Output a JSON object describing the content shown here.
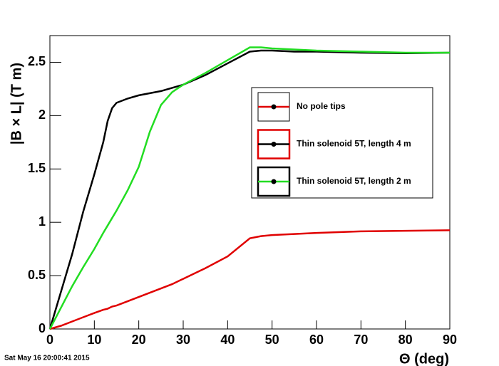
{
  "chart_data": {
    "type": "line",
    "x_label": "Θ (deg)",
    "y_label": "|B × L| (T m)",
    "footer": "Sat May 16 20:00:41 2015",
    "x": [
      0,
      2.5,
      5,
      7.5,
      10,
      12,
      13,
      14,
      15,
      17.5,
      20,
      22.5,
      25,
      27.5,
      30,
      35,
      40,
      45,
      47.5,
      50,
      55,
      60,
      70,
      80,
      90
    ],
    "series": [
      {
        "name": "No pole tips",
        "color": "#e00000",
        "values": [
          0,
          0.03,
          0.07,
          0.11,
          0.15,
          0.18,
          0.19,
          0.21,
          0.22,
          0.26,
          0.3,
          0.34,
          0.38,
          0.42,
          0.47,
          0.57,
          0.68,
          0.85,
          0.87,
          0.88,
          0.89,
          0.9,
          0.915,
          0.92,
          0.925
        ]
      },
      {
        "name": "Thin solenoid 5T, length 4 m",
        "color": "#000000",
        "values": [
          0,
          0.35,
          0.7,
          1.1,
          1.45,
          1.75,
          1.95,
          2.07,
          2.12,
          2.16,
          2.19,
          2.21,
          2.23,
          2.26,
          2.29,
          2.38,
          2.49,
          2.6,
          2.61,
          2.61,
          2.6,
          2.6,
          2.59,
          2.585,
          2.59
        ]
      },
      {
        "name": "Thin solenoid 5T, length 2 m",
        "color": "#22dd22",
        "values": [
          0,
          0.2,
          0.4,
          0.58,
          0.75,
          0.9,
          0.97,
          1.04,
          1.11,
          1.3,
          1.52,
          1.85,
          2.1,
          2.22,
          2.29,
          2.4,
          2.52,
          2.64,
          2.64,
          2.63,
          2.62,
          2.61,
          2.6,
          2.59,
          2.59
        ]
      }
    ],
    "xlim": [
      0,
      90
    ],
    "xticks": [
      0,
      10,
      20,
      30,
      40,
      50,
      60,
      70,
      80,
      90
    ],
    "ylim": [
      0,
      2.75
    ],
    "yticks": [
      0,
      0.5,
      1,
      1.5,
      2,
      2.5
    ]
  }
}
